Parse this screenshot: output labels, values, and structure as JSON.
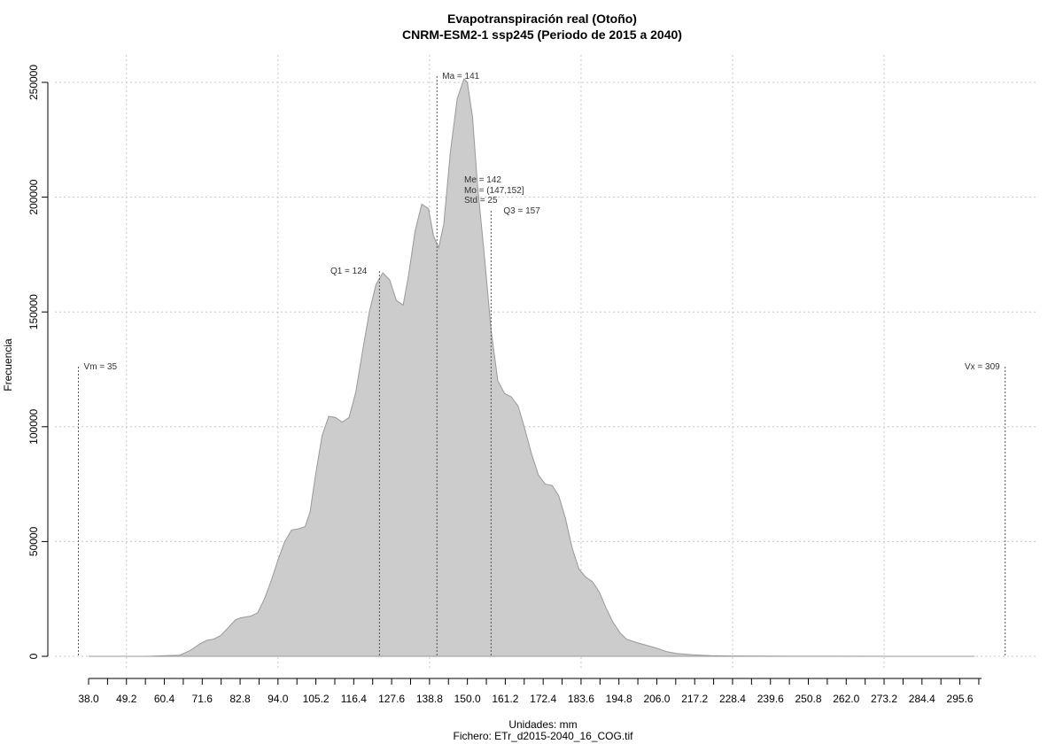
{
  "chart_data": {
    "type": "area",
    "title": "Evapotranspiración real (Otoño)",
    "subtitle": "CNRM-ESM2-1 ssp245 (Periodo de 2015 a 2040)",
    "xlabel": "Unidades: mm",
    "ylabel": "Frecuencia",
    "caption": "Fichero: ETr_d2015-2040_16_COG.tif",
    "xlim": [
      38.0,
      302.0
    ],
    "ylim": [
      0,
      260000
    ],
    "x_ticks": [
      "38.0",
      "49.2",
      "60.4",
      "71.6",
      "82.8",
      "94.0",
      "105.2",
      "116.4",
      "127.6",
      "138.8",
      "150.0",
      "161.2",
      "172.4",
      "183.6",
      "194.8",
      "206.0",
      "217.2",
      "228.4",
      "239.6",
      "250.8",
      "262.0",
      "273.2",
      "284.4",
      "295.6"
    ],
    "y_ticks": [
      0,
      50000,
      100000,
      150000,
      200000,
      250000
    ],
    "y_tick_labels": [
      "0",
      "50000",
      "100000",
      "150000",
      "200000",
      "250000"
    ],
    "grid": true,
    "fill_color": "#cccccc",
    "line_color": "#999999",
    "series": [
      {
        "x": [
          38.0,
          55.0,
          65.0,
          68.0,
          71.0,
          73.0,
          75.0,
          77.0,
          79.0,
          81.5,
          83.0,
          86.0,
          88.0,
          90.0,
          92.0,
          94.0,
          96.0,
          98.0,
          100.0,
          102.0,
          103.5,
          105.0,
          107.0,
          109.0,
          111.0,
          113.0,
          115.0,
          117.0,
          119.0,
          121.0,
          123.0,
          125.0,
          127.0,
          129.0,
          131.0,
          132.5,
          134.5,
          136.5,
          138.5,
          140.0,
          141.5,
          143.0,
          145.0,
          147.0,
          149.0,
          150.0,
          151.5,
          153.0,
          155.0,
          157.0,
          159.0,
          161.0,
          163.0,
          165.0,
          167.0,
          169.0,
          171.0,
          173.0,
          175.0,
          177.0,
          179.0,
          181.0,
          183.0,
          185.0,
          187.0,
          189.0,
          191.0,
          193.0,
          195.0,
          197.0,
          200.0,
          203.0,
          206.0,
          209.0,
          212.0,
          217.0,
          222.0,
          228.0,
          240.0,
          260.0,
          285.0,
          300.0
        ],
        "y": [
          0,
          0,
          500,
          2500,
          5500,
          7000,
          7500,
          9000,
          12000,
          16000,
          16800,
          17500,
          19000,
          25000,
          33000,
          42000,
          50000,
          55000,
          55500,
          56500,
          63000,
          78000,
          96000,
          104500,
          104000,
          102000,
          104000,
          115000,
          133000,
          150000,
          162000,
          167000,
          164000,
          155000,
          153000,
          165000,
          185000,
          197000,
          195000,
          183000,
          178000,
          188000,
          220000,
          243000,
          251500,
          250000,
          235000,
          205000,
          175000,
          142000,
          120000,
          114500,
          113000,
          109000,
          99000,
          88000,
          79000,
          75000,
          74500,
          70000,
          60000,
          47000,
          38000,
          34500,
          32500,
          28000,
          21000,
          15000,
          10500,
          7500,
          6000,
          4800,
          3500,
          2000,
          1200,
          600,
          300,
          150,
          80,
          30,
          10,
          0
        ]
      }
    ],
    "reference_lines": [
      {
        "x": 35,
        "label": "Vm = 35"
      },
      {
        "x": 124,
        "label": "Q1 = 124"
      },
      {
        "x": 141,
        "label": "Ma = 141"
      },
      {
        "x": 157,
        "label": "Q3 = 157"
      },
      {
        "x": 309,
        "label": "Vx = 309"
      }
    ],
    "stats_annotation": [
      "Me = 142",
      "Mo = (147,152]",
      "Std = 25"
    ]
  }
}
